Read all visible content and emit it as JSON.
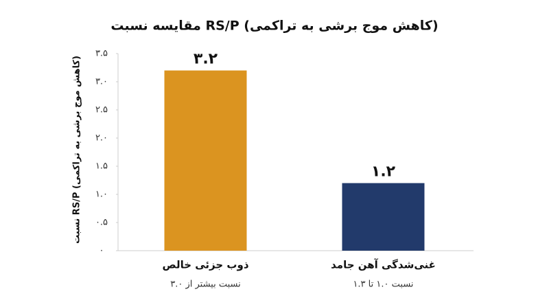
{
  "chart_data": {
    "type": "bar",
    "title": "مقایسه نسبت RS/P (کاهش موج برشی به تراکمی)",
    "y_label": "نسبت RS/P (کاهش موج برشی به تراکمی)",
    "categories": [
      "ذوب جزئی خالص",
      "غنی‌شدگی آهن جامد"
    ],
    "category_notes": [
      "نسبت بیشتر از ۳.۰",
      "نسبت ۱.۰ تا ۱.۳"
    ],
    "values": [
      3.2,
      1.2
    ],
    "value_labels": [
      "۳.۲",
      "۱.۲"
    ],
    "colors": [
      "#db9420",
      "#223a6b"
    ],
    "ylim": [
      0,
      3.5
    ],
    "yticks": [
      {
        "value": 0,
        "label": "۰"
      },
      {
        "value": 0.5,
        "label": "۰.۵"
      },
      {
        "value": 1,
        "label": "۱.۰"
      },
      {
        "value": 1.5,
        "label": "۱.۵"
      },
      {
        "value": 2,
        "label": "۲.۰"
      },
      {
        "value": 2.5,
        "label": "۲.۵"
      },
      {
        "value": 3,
        "label": "۳.۰"
      },
      {
        "value": 3.5,
        "label": "۳.۵"
      }
    ],
    "grid": false
  }
}
